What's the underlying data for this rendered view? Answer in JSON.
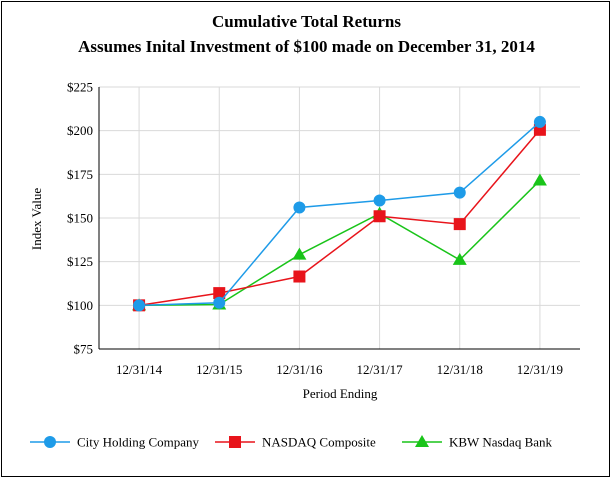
{
  "chart_data": {
    "type": "line",
    "title": "Cumulative Total Returns",
    "subtitle": "Assumes Inital Investment of $100 made on December 31, 2014",
    "xlabel": "Period Ending",
    "ylabel": "Index Value",
    "categories": [
      "12/31/14",
      "12/31/15",
      "12/31/16",
      "12/31/17",
      "12/31/18",
      "12/31/19"
    ],
    "ylim": [
      75,
      225
    ],
    "yticks": [
      75,
      100,
      125,
      150,
      175,
      200,
      225
    ],
    "ytick_labels": [
      "$75",
      "$100",
      "$125",
      "$150",
      "$175",
      "$200",
      "$225"
    ],
    "grid": true,
    "legend_position": "bottom",
    "series": [
      {
        "name": "City Holding Company",
        "color": "#1E9BE8",
        "marker": "circle",
        "values": [
          100,
          101.5,
          156,
          160,
          164.5,
          205
        ]
      },
      {
        "name": "NASDAQ Composite",
        "color": "#E8141B",
        "marker": "square",
        "values": [
          100,
          107,
          116.5,
          151,
          146.5,
          200.5
        ]
      },
      {
        "name": "KBW Nasdaq Bank",
        "color": "#19C419",
        "marker": "triangle",
        "values": [
          100,
          100.5,
          129,
          152.5,
          126,
          171.5
        ]
      }
    ]
  }
}
